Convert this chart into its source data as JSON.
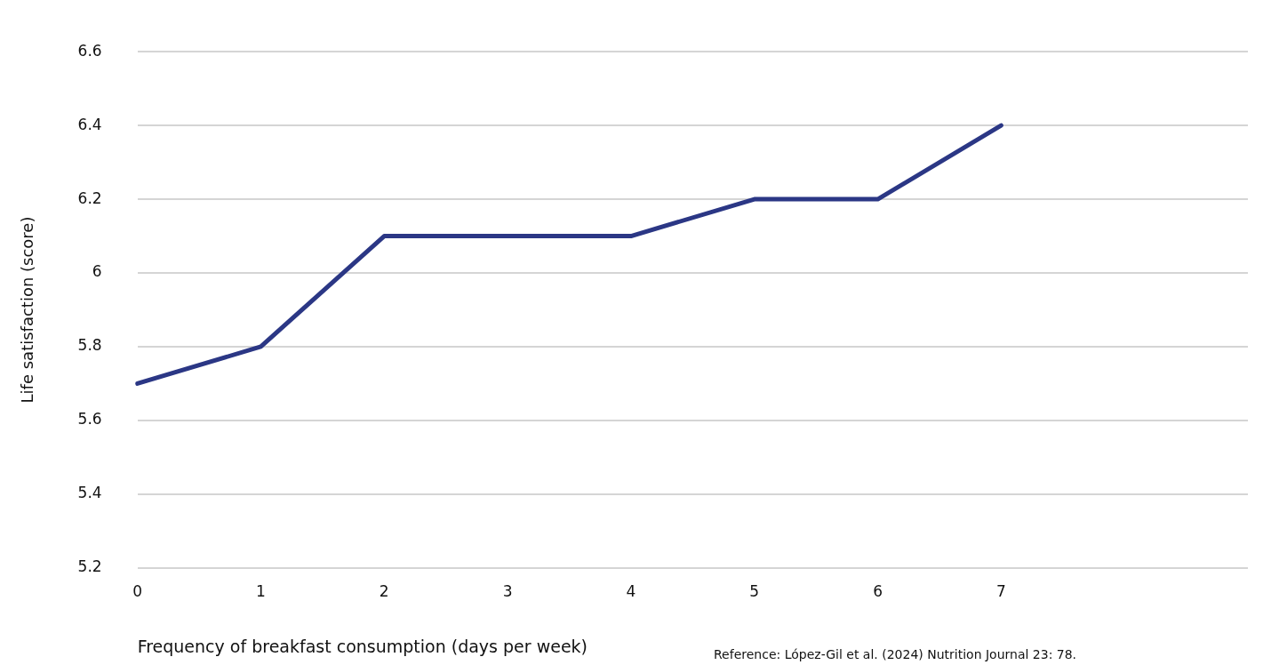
{
  "chart_data": {
    "type": "line",
    "xlabel": "Frequency of breakfast consumption (days per week)",
    "ylabel": "Life satisfaction (score)",
    "categories": [
      "0",
      "1",
      "2",
      "3",
      "4",
      "5",
      "6",
      "7",
      null,
      null
    ],
    "series": [
      {
        "color": "#2b3785",
        "values": [
          5.7,
          5.8,
          6.1,
          6.1,
          6.1,
          6.2,
          6.2,
          6.4,
          null,
          null
        ]
      }
    ],
    "ylim": [
      5.2,
      6.6
    ],
    "yticks": [
      5.2,
      5.4,
      5.6,
      5.8,
      6,
      6.2,
      6.4,
      6.6
    ],
    "grid": "y",
    "legend": false,
    "marker": "none",
    "line_style": "solid",
    "annotations": [
      "Reference: López-Gil et al. (2024) Nutrition Journal 23: 78."
    ]
  }
}
